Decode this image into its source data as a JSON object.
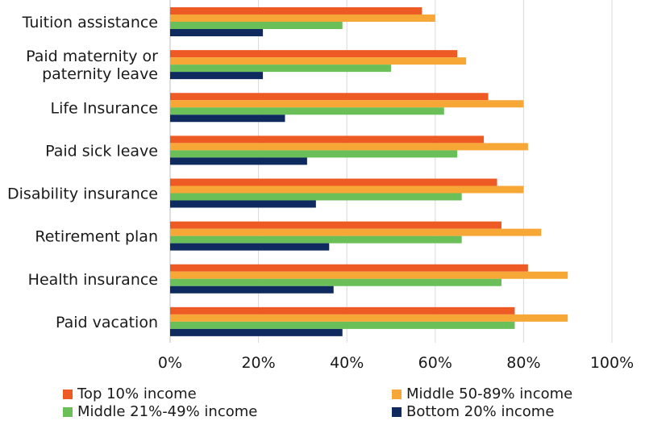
{
  "chart_data": {
    "type": "bar",
    "orientation": "horizontal",
    "categories": [
      "Tuition assistance",
      [
        "Paid maternity or",
        "paternity leave"
      ],
      "Life Insurance",
      "Paid sick leave",
      "Disability insurance",
      "Retirement plan",
      "Health insurance",
      "Paid vacation"
    ],
    "series": [
      {
        "name": "Top 10% income",
        "color": "#EE5A24",
        "values": [
          57,
          65,
          72,
          71,
          74,
          75,
          81,
          78
        ]
      },
      {
        "name": "Middle 50-89% income",
        "color": "#F7A735",
        "values": [
          60,
          67,
          80,
          81,
          80,
          84,
          90,
          90
        ]
      },
      {
        "name": "Middle 21%-49% income",
        "color": "#6BBF59",
        "values": [
          39,
          50,
          62,
          65,
          66,
          66,
          75,
          78
        ]
      },
      {
        "name": "Bottom 20% income",
        "color": "#0E2A5E",
        "values": [
          21,
          21,
          26,
          31,
          33,
          36,
          37,
          39
        ]
      }
    ],
    "xlim": [
      0,
      100
    ],
    "xticks": [
      "0%",
      "20%",
      "40%",
      "60%",
      "80%",
      "100%"
    ],
    "grid": true,
    "legend": "bottom"
  }
}
